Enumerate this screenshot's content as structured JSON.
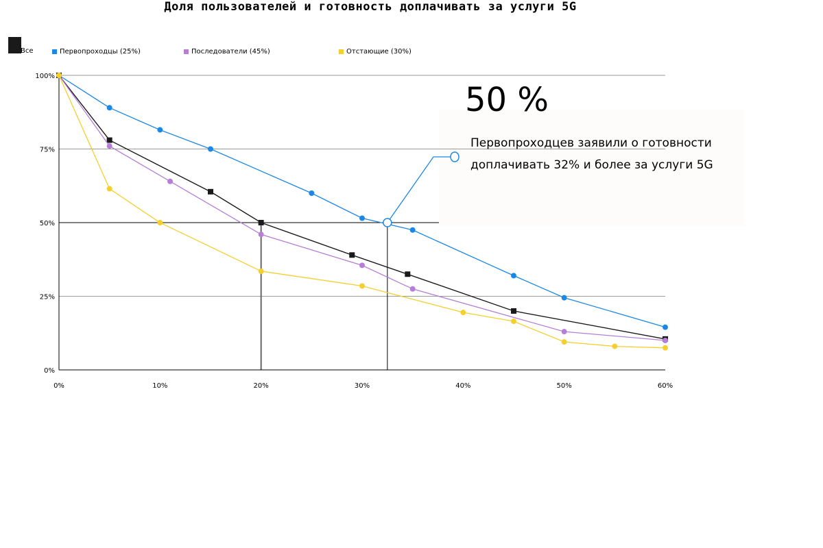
{
  "chart_data": {
    "type": "line",
    "title": "Доля пользователей и готовность доплачивать за услуги 5G",
    "xlabel": "",
    "ylabel": "",
    "xlim": [
      0,
      60
    ],
    "ylim": [
      0,
      100
    ],
    "x_tick_labels": [
      "0%",
      "10%",
      "20%",
      "30%",
      "40%",
      "50%",
      "60%"
    ],
    "x_ticks": [
      0,
      10,
      20,
      30,
      40,
      50,
      60
    ],
    "y_tick_labels": [
      "0%",
      "25%",
      "50%",
      "75%",
      "100%"
    ],
    "y_ticks": [
      0,
      25,
      50,
      75,
      100
    ],
    "grid": "horizontal",
    "legend_position": "top-left",
    "series": [
      {
        "name": "Все",
        "color": "#1a1a1a",
        "marker": "square",
        "x": [
          0,
          5,
          15,
          20,
          29,
          34.5,
          45,
          60
        ],
        "y": [
          100,
          78,
          60.5,
          50,
          39,
          32.5,
          20,
          10.5
        ]
      },
      {
        "name": "Первопроходцы (25%)",
        "color": "#1b87e6",
        "marker": "circle",
        "x": [
          0,
          5,
          10,
          15,
          25,
          30,
          35,
          45,
          50,
          60
        ],
        "y": [
          100,
          89,
          81.5,
          75,
          60,
          51.5,
          47.5,
          32,
          24.5,
          14.5
        ]
      },
      {
        "name": "Последователи (45%)",
        "color": "#b57ed8",
        "marker": "circle",
        "x": [
          0,
          5,
          11,
          20,
          30,
          35,
          50,
          60
        ],
        "y": [
          100,
          76,
          64,
          46,
          35.5,
          27.5,
          13,
          10
        ]
      },
      {
        "name": "Отстающие (30%)",
        "color": "#f5cf2e",
        "marker": "circle",
        "x": [
          0,
          5,
          10,
          20,
          30,
          40,
          45,
          50,
          55,
          60
        ],
        "y": [
          100,
          61.5,
          50,
          33.5,
          28.5,
          19.5,
          16.5,
          9.5,
          8,
          7.5
        ]
      }
    ],
    "reference_lines": [
      {
        "y": 50,
        "x": 20
      },
      {
        "y": 50,
        "x": 32.5
      }
    ],
    "annotation": {
      "big_value": "50 %",
      "text": "Первопроходцев заявили о готовности доплачивать 32% и более за услуги 5G",
      "point": {
        "x": 32.5,
        "y": 50
      }
    }
  },
  "colors": {
    "grid": "#9a9a9a",
    "axis": "#000000",
    "callout_line": "#1b87e6"
  }
}
